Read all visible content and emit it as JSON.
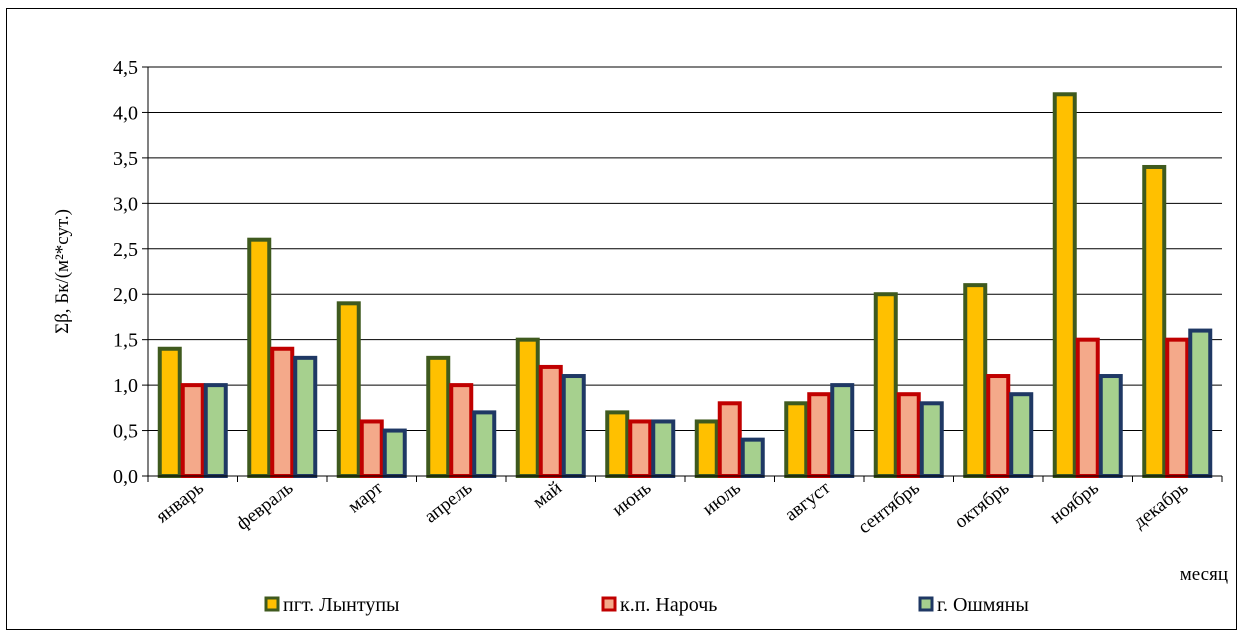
{
  "chart_data": {
    "type": "bar",
    "title": "",
    "xlabel": "месяц",
    "ylabel": "Σβ, Бк/(м²*сут.)",
    "ylim": [
      0,
      4.5
    ],
    "yticks": [
      "0,0",
      "0,5",
      "1,0",
      "1,5",
      "2,0",
      "2,5",
      "3,0",
      "3,5",
      "4,0",
      "4,5"
    ],
    "grid": true,
    "legend_position": "bottom",
    "categories": [
      "январь",
      "февраль",
      "март",
      "апрель",
      "май",
      "июнь",
      "июль",
      "август",
      "сентябрь",
      "октябрь",
      "ноябрь",
      "декабрь"
    ],
    "series": [
      {
        "name": "пгт. Лынтупы",
        "fill": "#FFC000",
        "stroke": "#3F5A1E",
        "values": [
          1.4,
          2.6,
          1.9,
          1.3,
          1.5,
          0.7,
          0.6,
          0.8,
          2.0,
          2.1,
          4.2,
          3.4
        ]
      },
      {
        "name": "к.п. Нарочь",
        "fill": "#F4A98A",
        "stroke": "#C00000",
        "values": [
          1.0,
          1.4,
          0.6,
          1.0,
          1.2,
          0.6,
          0.8,
          0.9,
          0.9,
          1.1,
          1.5,
          1.5
        ]
      },
      {
        "name": "г. Ошмяны",
        "fill": "#A6D08E",
        "stroke": "#1F3864",
        "values": [
          1.0,
          1.3,
          0.5,
          0.7,
          1.1,
          0.6,
          0.4,
          1.0,
          0.8,
          0.9,
          1.1,
          1.6
        ]
      }
    ]
  }
}
